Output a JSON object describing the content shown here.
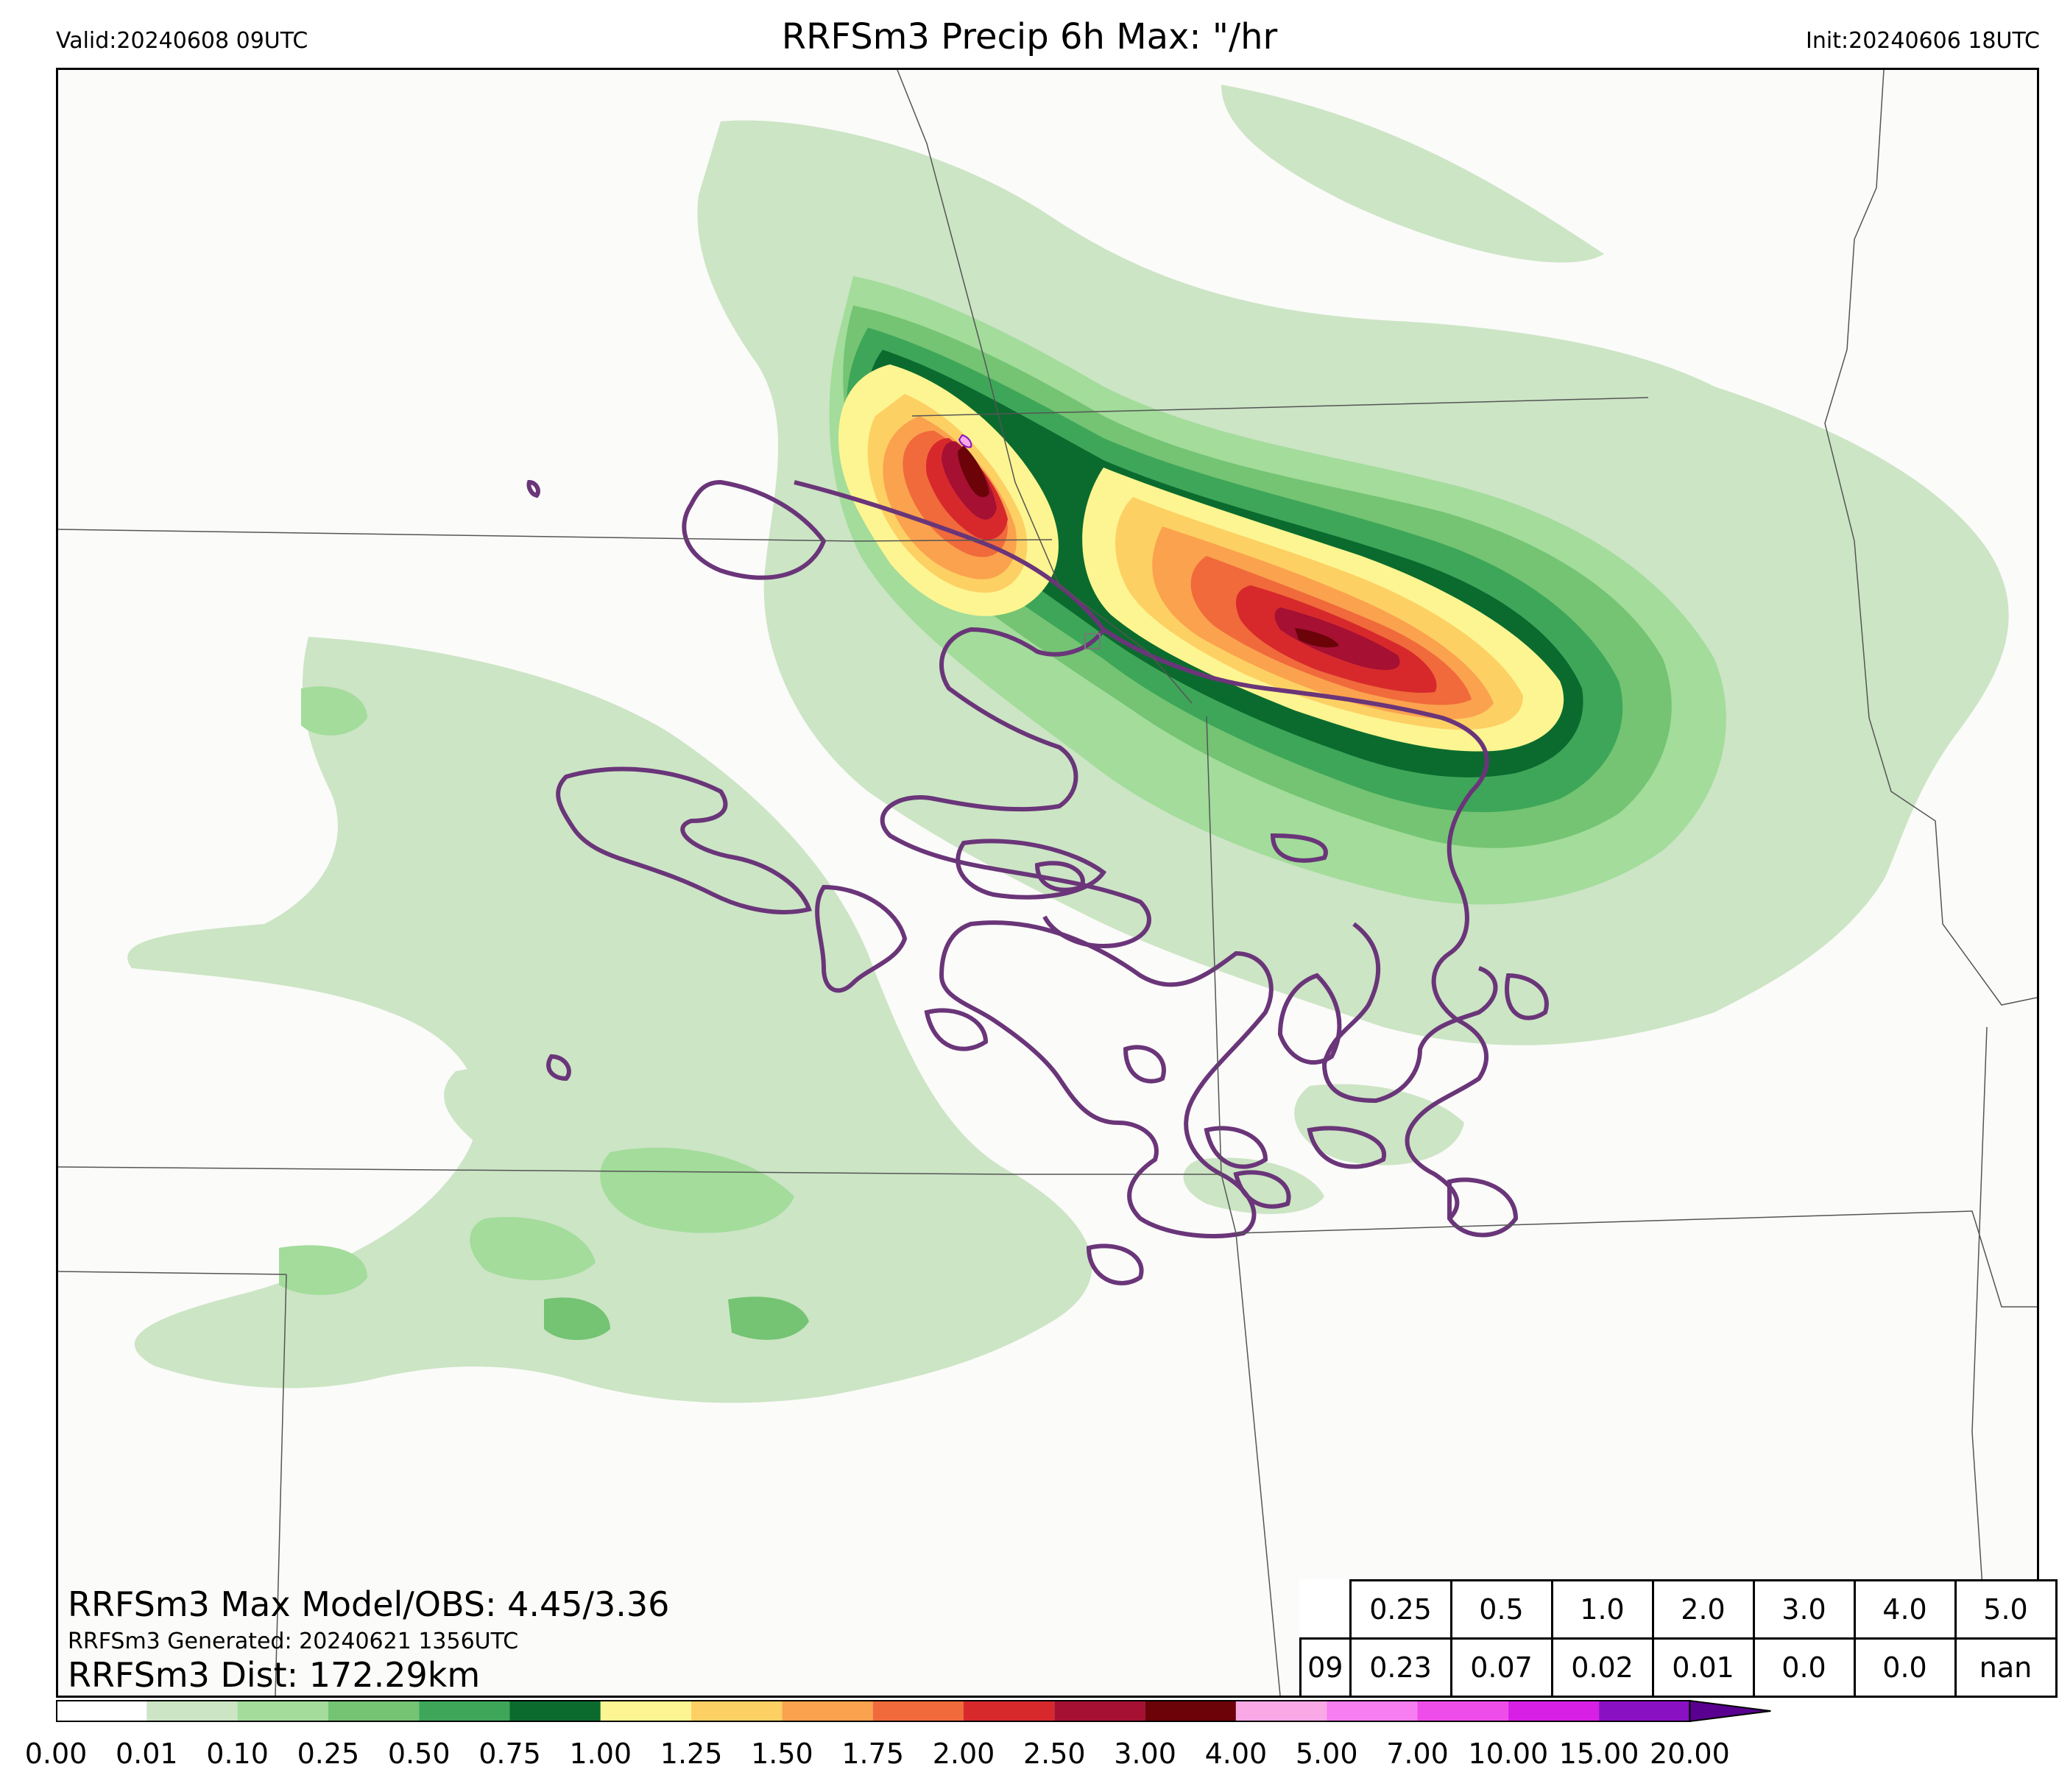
{
  "header": {
    "valid": "Valid:20240608 09UTC",
    "title": "RRFSm3 Precip 6h Max: \"/hr",
    "init": "Init:20240606 18UTC"
  },
  "stats": {
    "max_line": "RRFSm3 Max Model/OBS: 4.45/3.36",
    "generated": "RRFSm3 Generated: 20240621 1356UTC",
    "dist": "RRFSm3 Dist: 172.29km"
  },
  "table": {
    "thresholds": [
      "0.25",
      "0.5",
      "1.0",
      "2.0",
      "3.0",
      "4.0",
      "5.0"
    ],
    "row_label": "09",
    "row_values": [
      "0.23",
      "0.07",
      "0.02",
      "0.01",
      "0.0",
      "0.0",
      "nan"
    ]
  },
  "colorbar": {
    "tick_labels": [
      "0.00",
      "0.01",
      "0.10",
      "0.25",
      "0.50",
      "0.75",
      "1.00",
      "1.25",
      "1.50",
      "1.75",
      "2.00",
      "2.50",
      "3.00",
      "4.00",
      "5.00",
      "7.00",
      "10.00",
      "15.00",
      "20.00"
    ],
    "colors": [
      "#ffffff",
      "#cce5c5",
      "#a3dc9b",
      "#74c473",
      "#3ea659",
      "#0b6b2e",
      "#fdf591",
      "#fdd064",
      "#fba24e",
      "#f06a3b",
      "#d7292c",
      "#a51033",
      "#6b0308",
      "#fba8e6",
      "#f77ef0",
      "#ef4de9",
      "#d81fe6",
      "#8a10c4"
    ],
    "extend_color": "#5a0090"
  }
}
